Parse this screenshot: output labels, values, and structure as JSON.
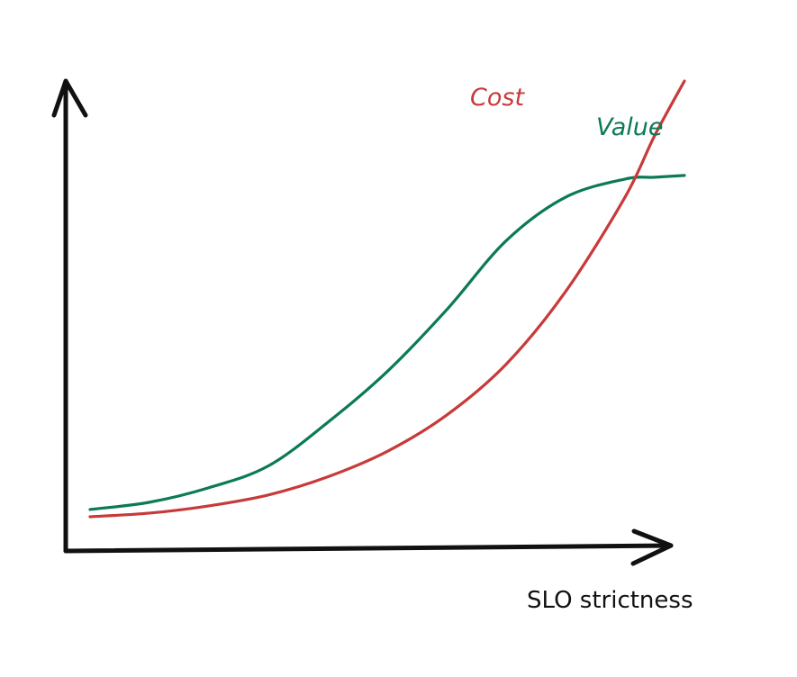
{
  "chart_data": {
    "type": "line",
    "title": "",
    "xlabel": "SLO strictness",
    "ylabel": "",
    "grid": false,
    "legend": "none",
    "x": [
      0,
      0.1,
      0.2,
      0.3,
      0.4,
      0.5,
      0.6,
      0.7,
      0.8,
      0.9,
      0.95,
      1.0
    ],
    "series": [
      {
        "name": "Value",
        "color": "#0b7a55",
        "values": [
          0.02,
          0.04,
          0.08,
          0.14,
          0.26,
          0.4,
          0.57,
          0.76,
          0.88,
          0.93,
          0.935,
          0.94
        ]
      },
      {
        "name": "Cost",
        "color": "#c83a3a",
        "values": [
          0.0,
          0.01,
          0.03,
          0.06,
          0.11,
          0.18,
          0.28,
          0.42,
          0.62,
          0.88,
          1.05,
          1.2
        ]
      }
    ],
    "xlim": [
      0,
      1
    ],
    "ylim": [
      0,
      1.2
    ]
  }
}
